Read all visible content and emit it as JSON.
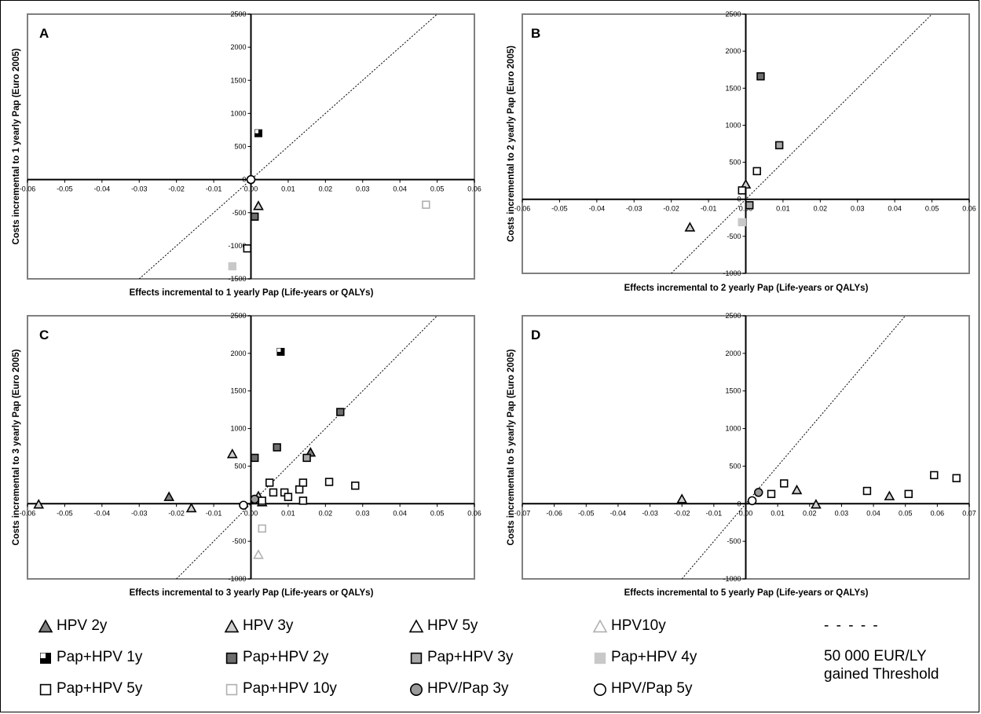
{
  "chart_data": [
    {
      "type": "scatter",
      "panel": "A",
      "ylabel": "Costs incremental to 1 yearly Pap (Euro 2005)",
      "xlabel": "Effects incremental to 1 yearly Pap (Life-years or QALYs)",
      "xlim": [
        -0.06,
        0.06
      ],
      "ylim": [
        -1500,
        2500
      ],
      "xticks": [
        "-0.06",
        "-0.05",
        "-0.04",
        "-0.03",
        "-0.02",
        "-0.01",
        "0.00",
        "0.01",
        "0.02",
        "0.03",
        "0.04",
        "0.05",
        "0.06"
      ],
      "yticks": [
        "-1500",
        "-1000",
        "-500",
        "0",
        "500",
        "1000",
        "1500",
        "2000",
        "2500"
      ],
      "grid": false,
      "threshold_slope": 50000,
      "points": [
        {
          "series": "HPV 3y",
          "x": 0.002,
          "y": -400
        },
        {
          "series": "Pap+HPV 1y",
          "x": 0.002,
          "y": 700
        },
        {
          "series": "Pap+HPV 2y",
          "x": 0.001,
          "y": -560
        },
        {
          "series": "Pap+HPV 4y",
          "x": -0.005,
          "y": -1310
        },
        {
          "series": "Pap+HPV 5y",
          "x": -0.001,
          "y": -1040
        },
        {
          "series": "Pap+HPV 10y",
          "x": 0.047,
          "y": -380
        },
        {
          "series": "HPV/Pap 5y",
          "x": 0.0,
          "y": 0
        }
      ]
    },
    {
      "type": "scatter",
      "panel": "B",
      "ylabel": "Costs incremental to 2 yearly Pap (Euro 2005)",
      "xlabel": "Effects incremental to 2 yearly Pap (Life-years or QALYs)",
      "xlim": [
        -0.06,
        0.06
      ],
      "ylim": [
        -1000,
        2500
      ],
      "xticks": [
        "-0.06",
        "-0.05",
        "-0.04",
        "-0.03",
        "-0.02",
        "-0.01",
        "0.00",
        "0.01",
        "0.02",
        "0.03",
        "0.04",
        "0.05",
        "0.06"
      ],
      "yticks": [
        "-1000",
        "-500",
        "0",
        "500",
        "1000",
        "1500",
        "2000",
        "2500"
      ],
      "grid": false,
      "threshold_slope": 50000,
      "points": [
        {
          "series": "HPV 3y",
          "x": -0.015,
          "y": -380
        },
        {
          "series": "HPV 3y",
          "x": 0.0,
          "y": 200
        },
        {
          "series": "Pap+HPV 2y",
          "x": 0.004,
          "y": 1660
        },
        {
          "series": "Pap+HPV 3y",
          "x": 0.009,
          "y": 730
        },
        {
          "series": "Pap+HPV 3y",
          "x": 0.001,
          "y": -80
        },
        {
          "series": "Pap+HPV 4y",
          "x": -0.001,
          "y": -310
        },
        {
          "series": "Pap+HPV 5y",
          "x": 0.003,
          "y": 380
        },
        {
          "series": "Pap+HPV 5y",
          "x": -0.001,
          "y": 120
        }
      ]
    },
    {
      "type": "scatter",
      "panel": "C",
      "ylabel": "Costs incremental to 3 yearly Pap (Euro 2005)",
      "xlabel": "Effects incremental to 3 yearly Pap (Life-years or QALYs)",
      "xlim": [
        -0.06,
        0.06
      ],
      "ylim": [
        -1000,
        2500
      ],
      "xticks": [
        "-0.06",
        "-0.05",
        "-0.04",
        "-0.03",
        "-0.02",
        "-0.01",
        "0.00",
        "0.01",
        "0.02",
        "0.03",
        "0.04",
        "0.05",
        "0.06"
      ],
      "yticks": [
        "-1000",
        "-500",
        "0",
        "500",
        "1000",
        "1500",
        "2000",
        "2500"
      ],
      "grid": false,
      "threshold_slope": 50000,
      "points": [
        {
          "series": "HPV 2y",
          "x": -0.022,
          "y": 90
        },
        {
          "series": "HPV 2y",
          "x": 0.016,
          "y": 680
        },
        {
          "series": "HPV 3y",
          "x": -0.057,
          "y": -10
        },
        {
          "series": "HPV 3y",
          "x": -0.016,
          "y": -60
        },
        {
          "series": "HPV 3y",
          "x": -0.005,
          "y": 660
        },
        {
          "series": "HPV 3y",
          "x": 0.002,
          "y": 100
        },
        {
          "series": "HPV 5y",
          "x": 0.003,
          "y": 20
        },
        {
          "series": "HPV10y",
          "x": 0.002,
          "y": -680
        },
        {
          "series": "Pap+HPV 1y",
          "x": 0.008,
          "y": 2020
        },
        {
          "series": "Pap+HPV 2y",
          "x": 0.024,
          "y": 1220
        },
        {
          "series": "Pap+HPV 2y",
          "x": 0.007,
          "y": 750
        },
        {
          "series": "Pap+HPV 2y",
          "x": 0.001,
          "y": 610
        },
        {
          "series": "Pap+HPV 3y",
          "x": 0.015,
          "y": 610
        },
        {
          "series": "Pap+HPV 5y",
          "x": 0.005,
          "y": 280
        },
        {
          "series": "Pap+HPV 5y",
          "x": 0.006,
          "y": 150
        },
        {
          "series": "Pap+HPV 5y",
          "x": 0.009,
          "y": 150
        },
        {
          "series": "Pap+HPV 5y",
          "x": 0.01,
          "y": 90
        },
        {
          "series": "Pap+HPV 5y",
          "x": 0.013,
          "y": 190
        },
        {
          "series": "Pap+HPV 5y",
          "x": 0.014,
          "y": 280
        },
        {
          "series": "Pap+HPV 5y",
          "x": 0.014,
          "y": 40
        },
        {
          "series": "Pap+HPV 5y",
          "x": 0.021,
          "y": 290
        },
        {
          "series": "Pap+HPV 5y",
          "x": 0.028,
          "y": 240
        },
        {
          "series": "Pap+HPV 5y",
          "x": 0.003,
          "y": 40
        },
        {
          "series": "Pap+HPV 10y",
          "x": 0.003,
          "y": -330
        },
        {
          "series": "HPV/Pap 3y",
          "x": 0.001,
          "y": 60
        },
        {
          "series": "HPV/Pap 5y",
          "x": -0.002,
          "y": -20
        }
      ]
    },
    {
      "type": "scatter",
      "panel": "D",
      "ylabel": "Costs incremental to 5 yearly Pap (Euro 2005)",
      "xlabel": "Effects incremental to 5 yearly Pap (Life-years or QALYs)",
      "xlim": [
        -0.07,
        0.07
      ],
      "ylim": [
        -1000,
        2500
      ],
      "xticks": [
        "-0.07",
        "-0.06",
        "-0.05",
        "-0.04",
        "-0.03",
        "-0.02",
        "-0.01",
        "0.00",
        "0.01",
        "0.02",
        "0.03",
        "0.04",
        "0.05",
        "0.06",
        "0.07"
      ],
      "yticks": [
        "-1000",
        "-500",
        "0",
        "500",
        "1000",
        "1500",
        "2000",
        "2500"
      ],
      "grid": false,
      "threshold_slope": 50000,
      "points": [
        {
          "series": "HPV 3y",
          "x": -0.02,
          "y": 60
        },
        {
          "series": "HPV 3y",
          "x": 0.016,
          "y": 180
        },
        {
          "series": "HPV 3y",
          "x": 0.022,
          "y": -10
        },
        {
          "series": "HPV 3y",
          "x": 0.045,
          "y": 100
        },
        {
          "series": "Pap+HPV 5y",
          "x": 0.008,
          "y": 130
        },
        {
          "series": "Pap+HPV 5y",
          "x": 0.012,
          "y": 270
        },
        {
          "series": "Pap+HPV 5y",
          "x": 0.038,
          "y": 170
        },
        {
          "series": "Pap+HPV 5y",
          "x": 0.051,
          "y": 130
        },
        {
          "series": "Pap+HPV 5y",
          "x": 0.059,
          "y": 380
        },
        {
          "series": "Pap+HPV 5y",
          "x": 0.066,
          "y": 340
        },
        {
          "series": "HPV/Pap 3y",
          "x": 0.004,
          "y": 150
        },
        {
          "series": "HPV/Pap 5y",
          "x": 0.002,
          "y": 40
        }
      ]
    }
  ],
  "legend": {
    "items": [
      {
        "label": "HPV 2y",
        "symbol": "triangle",
        "fill": "#808080"
      },
      {
        "label": "HPV 3y",
        "symbol": "triangle",
        "fill": "#d0d0d0"
      },
      {
        "label": "HPV 5y",
        "symbol": "triangle",
        "fill": "#ffffff"
      },
      {
        "label": "HPV10y",
        "symbol": "triangle",
        "fill": "#ffffff",
        "stroke": "#b0b0b0"
      },
      {
        "label": "Pap+HPV 1y",
        "symbol": "square-half",
        "fill": "#000000"
      },
      {
        "label": "Pap+HPV 2y",
        "symbol": "square",
        "fill": "#6e6e6e"
      },
      {
        "label": "Pap+HPV 3y",
        "symbol": "square",
        "fill": "#a8a8a8"
      },
      {
        "label": "Pap+HPV 4y",
        "symbol": "square",
        "fill": "#c8c8c8",
        "stroke": "#c8c8c8"
      },
      {
        "label": "Pap+HPV 5y",
        "symbol": "square",
        "fill": "#ffffff"
      },
      {
        "label": "Pap+HPV 10y",
        "symbol": "square",
        "fill": "#ffffff",
        "stroke": "#b0b0b0"
      },
      {
        "label": "HPV/Pap 3y",
        "symbol": "circle",
        "fill": "#9a9a9a"
      },
      {
        "label": "HPV/Pap 5y",
        "symbol": "circle",
        "fill": "#ffffff"
      }
    ],
    "threshold_dash": "- - - - -",
    "threshold_line1": "50 000 EUR/LY",
    "threshold_line2": "gained Threshold"
  }
}
